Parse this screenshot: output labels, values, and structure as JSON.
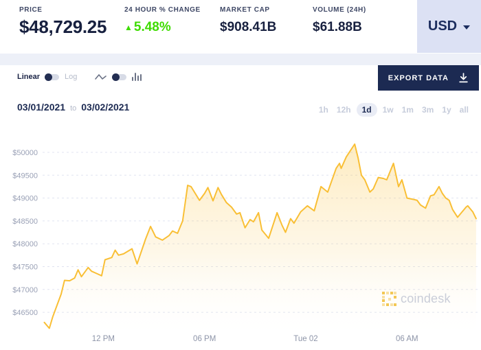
{
  "header": {
    "price": {
      "label": "PRICE",
      "value": "$48,729.25"
    },
    "change": {
      "label": "24 HOUR % CHANGE",
      "value": "5.48%",
      "direction": "up",
      "arrow": "▲"
    },
    "market_cap": {
      "label": "MARKET CAP",
      "value": "$908.41B"
    },
    "volume": {
      "label": "VOLUME (24H)",
      "value": "$61.88B"
    },
    "currency": {
      "value": "USD"
    }
  },
  "toolbar": {
    "scale_toggle": {
      "left": "Linear",
      "right": "Log",
      "selected": "Linear"
    },
    "chart_type_toggle": {
      "left": "line-chart",
      "right": "bar-chart",
      "selected": "line-chart"
    },
    "export_label": "EXPORT DATA"
  },
  "range": {
    "start_date": "03/01/2021",
    "separator": "to",
    "end_date": "03/02/2021",
    "options": [
      "1h",
      "12h",
      "1d",
      "1w",
      "1m",
      "3m",
      "1y",
      "all"
    ],
    "selected": "1d"
  },
  "watermark": {
    "text": "coindesk"
  },
  "icons": {
    "currency_dropdown": "chevron-down",
    "export": "download-arrow",
    "chart_line": "line-chart",
    "chart_bar": "bar-chart",
    "change_direction": "triangle-up",
    "brand": "coindesk-pixel-square"
  },
  "colors": {
    "accent_green": "#3edc00",
    "navy": "#1c2a52",
    "line": "#f9bf35",
    "currency_bg": "#dce1f4",
    "grid": "#e0e3f0"
  },
  "chart_data": {
    "type": "area",
    "title": "BTC price, USD",
    "x_unit": "hours since 2021-03-01 00:00",
    "xlim": [
      8.4,
      34.5
    ],
    "ylim": [
      46150,
      50400
    ],
    "grid": "dashed-horizontal",
    "x_ticks": [
      {
        "t": 12,
        "label": "12 PM"
      },
      {
        "t": 18,
        "label": "06 PM"
      },
      {
        "t": 24,
        "label": "Tue 02"
      },
      {
        "t": 30,
        "label": "06 AM"
      }
    ],
    "y_ticks": [
      {
        "value": 50000,
        "label": "$50000"
      },
      {
        "value": 49500,
        "label": "$49500"
      },
      {
        "value": 49000,
        "label": "$49000"
      },
      {
        "value": 48500,
        "label": "$48500"
      },
      {
        "value": 48000,
        "label": "$48000"
      },
      {
        "value": 47500,
        "label": "$47500"
      },
      {
        "value": 47000,
        "label": "$47000"
      },
      {
        "value": 46500,
        "label": "$46500"
      }
    ],
    "points": [
      [
        8.5,
        46280
      ],
      [
        8.8,
        46150
      ],
      [
        9.0,
        46400
      ],
      [
        9.5,
        46900
      ],
      [
        9.7,
        47200
      ],
      [
        10.0,
        47190
      ],
      [
        10.3,
        47250
      ],
      [
        10.5,
        47430
      ],
      [
        10.7,
        47280
      ],
      [
        11.1,
        47480
      ],
      [
        11.3,
        47400
      ],
      [
        11.6,
        47350
      ],
      [
        11.9,
        47300
      ],
      [
        12.1,
        47650
      ],
      [
        12.5,
        47700
      ],
      [
        12.7,
        47860
      ],
      [
        12.9,
        47750
      ],
      [
        13.2,
        47780
      ],
      [
        13.7,
        47890
      ],
      [
        14.0,
        47560
      ],
      [
        14.5,
        48100
      ],
      [
        14.8,
        48380
      ],
      [
        15.1,
        48150
      ],
      [
        15.5,
        48080
      ],
      [
        15.9,
        48180
      ],
      [
        16.1,
        48280
      ],
      [
        16.4,
        48230
      ],
      [
        16.7,
        48500
      ],
      [
        17.0,
        49280
      ],
      [
        17.2,
        49250
      ],
      [
        17.7,
        48950
      ],
      [
        18.0,
        49100
      ],
      [
        18.2,
        49230
      ],
      [
        18.5,
        48940
      ],
      [
        18.8,
        49230
      ],
      [
        19.0,
        49080
      ],
      [
        19.3,
        48900
      ],
      [
        19.6,
        48800
      ],
      [
        19.9,
        48650
      ],
      [
        20.1,
        48680
      ],
      [
        20.4,
        48350
      ],
      [
        20.7,
        48530
      ],
      [
        20.9,
        48480
      ],
      [
        21.2,
        48680
      ],
      [
        21.4,
        48300
      ],
      [
        21.8,
        48120
      ],
      [
        22.3,
        48680
      ],
      [
        22.6,
        48400
      ],
      [
        22.8,
        48250
      ],
      [
        23.1,
        48550
      ],
      [
        23.3,
        48450
      ],
      [
        23.7,
        48700
      ],
      [
        24.1,
        48830
      ],
      [
        24.5,
        48720
      ],
      [
        24.9,
        49250
      ],
      [
        25.3,
        49130
      ],
      [
        25.8,
        49650
      ],
      [
        26.0,
        49760
      ],
      [
        26.1,
        49650
      ],
      [
        26.4,
        49900
      ],
      [
        26.9,
        50180
      ],
      [
        27.1,
        49880
      ],
      [
        27.3,
        49500
      ],
      [
        27.5,
        49400
      ],
      [
        27.8,
        49130
      ],
      [
        28.0,
        49200
      ],
      [
        28.3,
        49450
      ],
      [
        28.6,
        49430
      ],
      [
        28.8,
        49400
      ],
      [
        29.2,
        49760
      ],
      [
        29.5,
        49250
      ],
      [
        29.7,
        49400
      ],
      [
        30.0,
        49000
      ],
      [
        30.4,
        48970
      ],
      [
        30.6,
        48950
      ],
      [
        30.8,
        48850
      ],
      [
        31.1,
        48780
      ],
      [
        31.4,
        49050
      ],
      [
        31.6,
        49070
      ],
      [
        31.9,
        49250
      ],
      [
        32.1,
        49100
      ],
      [
        32.3,
        49000
      ],
      [
        32.5,
        48950
      ],
      [
        32.7,
        48750
      ],
      [
        33.0,
        48580
      ],
      [
        33.5,
        48800
      ],
      [
        33.6,
        48830
      ],
      [
        33.9,
        48700
      ],
      [
        34.1,
        48550
      ]
    ]
  }
}
